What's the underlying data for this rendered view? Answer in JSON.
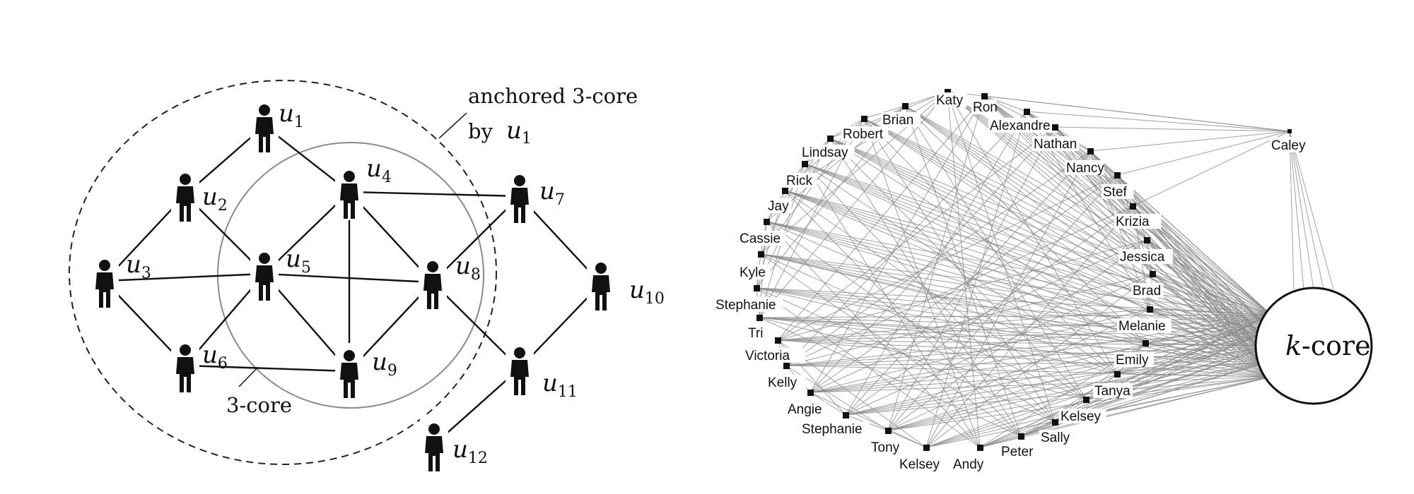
{
  "left": {
    "people": [
      {
        "id": "u1",
        "sub": "1"
      },
      {
        "id": "u2",
        "sub": "2"
      },
      {
        "id": "u3",
        "sub": "3"
      },
      {
        "id": "u4",
        "sub": "4"
      },
      {
        "id": "u5",
        "sub": "5"
      },
      {
        "id": "u6",
        "sub": "6"
      },
      {
        "id": "u7",
        "sub": "7"
      },
      {
        "id": "u8",
        "sub": "8"
      },
      {
        "id": "u9",
        "sub": "9"
      },
      {
        "id": "u10",
        "sub": "10"
      },
      {
        "id": "u11",
        "sub": "11"
      },
      {
        "id": "u12",
        "sub": "12"
      }
    ],
    "edges": [
      [
        "u1",
        "u2"
      ],
      [
        "u1",
        "u4"
      ],
      [
        "u2",
        "u3"
      ],
      [
        "u2",
        "u5"
      ],
      [
        "u3",
        "u5"
      ],
      [
        "u3",
        "u6"
      ],
      [
        "u4",
        "u5"
      ],
      [
        "u4",
        "u7"
      ],
      [
        "u4",
        "u8"
      ],
      [
        "u4",
        "u9"
      ],
      [
        "u5",
        "u6"
      ],
      [
        "u5",
        "u8"
      ],
      [
        "u5",
        "u9"
      ],
      [
        "u6",
        "u9"
      ],
      [
        "u7",
        "u8"
      ],
      [
        "u7",
        "u10"
      ],
      [
        "u8",
        "u9"
      ],
      [
        "u8",
        "u11"
      ],
      [
        "u10",
        "u11"
      ],
      [
        "u11",
        "u12"
      ]
    ],
    "anchored_label_line1": "anchored 3-core",
    "anchored_label_by": "by",
    "anchored_label_u": "u",
    "anchored_label_sub": "1",
    "core_label": "3-core",
    "u_letter": "u"
  },
  "right": {
    "names": [
      "Katy",
      "Ron",
      "Brian",
      "Alexandre",
      "Robert",
      "Nathan",
      "Lindsay",
      "Nancy",
      "Rick",
      "Stef",
      "Jay",
      "Krizia",
      "Cassie",
      "Jessica",
      "Kyle",
      "Brad",
      "Stephanie",
      "Melanie",
      "Tri",
      "Victoria",
      "Emily",
      "Kelly",
      "Tanya",
      "Angie",
      "Kelsey",
      "Stephanie",
      "Sally",
      "Tony",
      "Peter",
      "Kelsey",
      "Andy"
    ],
    "caley": "Caley",
    "kcore_k": "k",
    "kcore_rest": "-core",
    "edge_color": "#8a8a8a"
  }
}
